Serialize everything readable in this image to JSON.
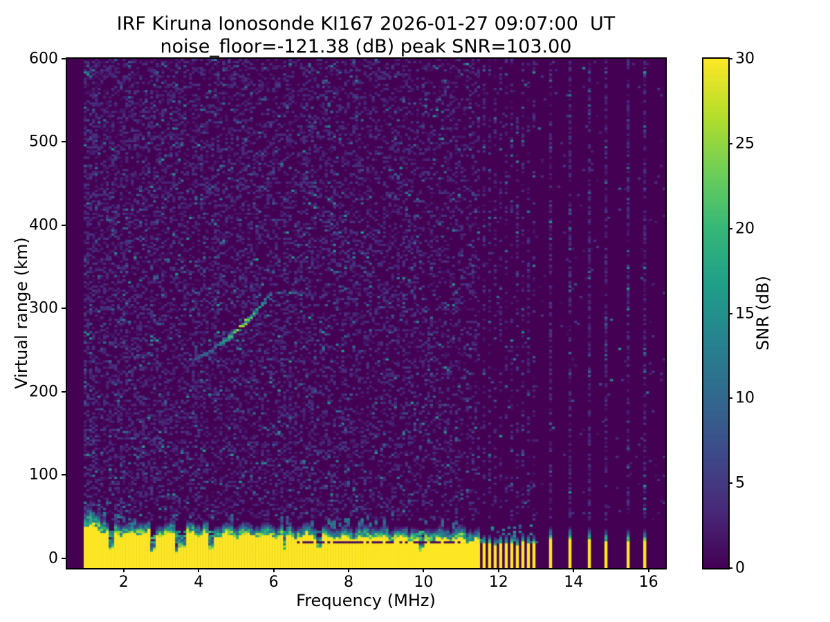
{
  "chart_data": {
    "type": "heatmap",
    "title": "IRF Kiruna Ionosonde KI167 2026-01-27 09:07:00  UT",
    "subtitle": "noise_floor=-121.38 (dB) peak SNR=103.00",
    "xlabel": "Frequency (MHz)",
    "ylabel": "Virtual range (km)",
    "xlim": [
      0.49,
      16.45
    ],
    "ylim": [
      -12,
      600
    ],
    "xticks": [
      2,
      4,
      6,
      8,
      10,
      12,
      14,
      16
    ],
    "yticks": [
      0,
      100,
      200,
      300,
      400,
      500,
      600
    ],
    "grid": false,
    "colormap": "viridis",
    "colorbar": {
      "label": "SNR (dB)",
      "ticks": [
        0,
        5,
        10,
        15,
        20,
        25,
        30
      ],
      "range": [
        0,
        30
      ],
      "position": "right"
    },
    "stats": {
      "station": "IRF Kiruna Ionosonde",
      "instrument_id": "KI167",
      "timestamp_ut": "2026-01-27 09:07:00",
      "noise_floor_db": -121.38,
      "peak_snr_db": 103.0
    },
    "features": {
      "data_freq_start_mhz": 0.95,
      "clutter_band": {
        "freq_end_mhz": 11.5,
        "saturated_top_km_low_freq": 28,
        "saturated_top_km_high_freq": 21,
        "transition_thickness_km": 13,
        "low_freq_boost_below_mhz": 1.5,
        "notches_mhz": [
          1.65,
          2.8,
          3.55,
          4.35,
          6.3,
          7.2,
          9.95
        ],
        "wide_notch_mhz": 3.55,
        "dark_streak": {
          "freq_range_mhz": [
            6.6,
            11.0
          ],
          "range_km": 19
        }
      },
      "interference": {
        "dense_stripes_mhz": [
          11.63,
          11.78,
          11.93,
          12.07,
          12.22,
          12.37,
          12.52,
          12.67,
          12.81,
          12.96
        ],
        "sparse_stripes_mhz": [
          13.42,
          13.94,
          14.43,
          14.91,
          15.45,
          15.95
        ],
        "dense_stripe_top_km": 17,
        "sparse_stripe_top_km": 21,
        "stripe_transition_thickness_km": 16,
        "dense_column_noise_density": 0.24,
        "sparse_column_noise_density": 0.5
      },
      "echo_trace": {
        "freq_start_mhz": 3.9,
        "range_start_km": 239,
        "freq_end_mhz": 5.95,
        "range_end_km": 319,
        "peak_snr_db": 26,
        "typical_snr_db": 10
      },
      "background_noise": {
        "freq_range_mhz": [
          0.95,
          11.5
        ],
        "min_range_km": 46,
        "density": 0.38,
        "typical_snr_db": [
          1,
          5
        ],
        "bright_snr_db": [
          6,
          14
        ]
      }
    }
  }
}
